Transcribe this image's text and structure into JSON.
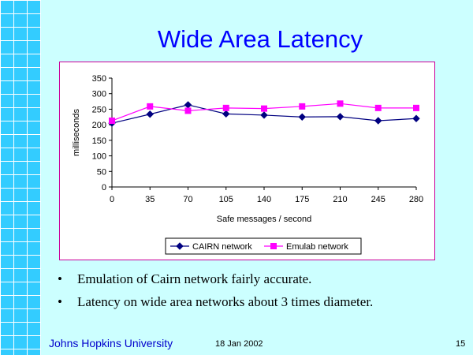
{
  "slide": {
    "title": "Wide Area Latency",
    "bullets": [
      "Emulation of Cairn network fairly accurate.",
      "Latency on wide area networks about 3 times diameter."
    ],
    "bullet_glyph": "•",
    "footer": {
      "organization": "Johns Hopkins University",
      "date": "18 Jan 2002",
      "page_number": "15"
    }
  },
  "chart_data": {
    "type": "line",
    "x": [
      0,
      35,
      70,
      105,
      140,
      175,
      210,
      245,
      280
    ],
    "xlabel": "Safe messages / second",
    "ylabel": "milliseconds",
    "ylim": [
      0,
      350
    ],
    "yticks": [
      0,
      50,
      100,
      150,
      200,
      250,
      300,
      350
    ],
    "grid": false,
    "legend": "bottom",
    "series": [
      {
        "name": "CAIRN network",
        "color": "#000080",
        "marker": "diamond",
        "values": [
          205,
          234,
          264,
          235,
          231,
          225,
          226,
          213,
          220
        ]
      },
      {
        "name": "Emulab network",
        "color": "#ff00ff",
        "marker": "square",
        "values": [
          213,
          259,
          245,
          254,
          252,
          259,
          268,
          254,
          254
        ]
      }
    ]
  }
}
